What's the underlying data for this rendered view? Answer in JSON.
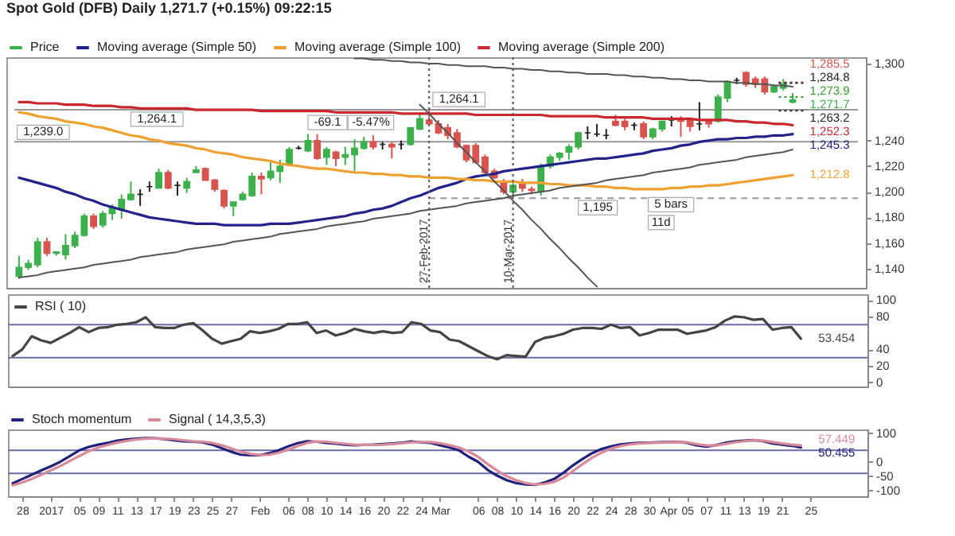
{
  "chart_data": [
    {
      "type": "candlestick",
      "title": "Spot Gold (DFB)   Daily   1,271.7 (+0.15%)   09:22:15",
      "categories": [
        null,
        null,
        null,
        null,
        null,
        null,
        null,
        null,
        null,
        null,
        null,
        null,
        null,
        null,
        null,
        null,
        null,
        null,
        null,
        null,
        null,
        null,
        null,
        null,
        null,
        null,
        null,
        null,
        null,
        null,
        null,
        null,
        null,
        null,
        null,
        null,
        null,
        null,
        null,
        null,
        null,
        null,
        null,
        null,
        null,
        null,
        null,
        null,
        null,
        null,
        null,
        null,
        null,
        null,
        null,
        null,
        null,
        null,
        null,
        null,
        null,
        null,
        null,
        null,
        null,
        null,
        null,
        null,
        null,
        null,
        null,
        null,
        null,
        null,
        null,
        null,
        null,
        null,
        null,
        null,
        null,
        null,
        null,
        null
      ],
      "series": [
        {
          "name": "Price",
          "color": "#3cb04a",
          "ohlc": [
            [
              1134,
              1150,
              1132,
              1141
            ],
            [
              1141,
              1147,
              1139,
              1144
            ],
            [
              1143,
              1164,
              1141,
              1161
            ],
            [
              1161,
              1164,
              1150,
              1152
            ],
            [
              1152,
              1153,
              1150,
              1153
            ],
            [
              1151,
              1167,
              1147,
              1158
            ],
            [
              1158,
              1169,
              1156,
              1166
            ],
            [
              1166,
              1183,
              1165,
              1181
            ],
            [
              1181,
              1183,
              1171,
              1173
            ],
            [
              1174,
              1185,
              1172,
              1183
            ],
            [
              1183,
              1190,
              1178,
              1188
            ],
            [
              1186,
              1198,
              1179,
              1194
            ],
            [
              1194,
              1208,
              1193,
              1198
            ],
            [
              1198,
              1202,
              1189,
              1198
            ],
            [
              1204,
              1208,
              1200,
              1204
            ],
            [
              1203,
              1218,
              1203,
              1215
            ],
            [
              1215,
              1217,
              1202,
              1203
            ],
            [
              1205,
              1208,
              1197,
              1205
            ],
            [
              1203,
              1211,
              1199,
              1208
            ],
            [
              1215,
              1220,
              1215,
              1217
            ],
            [
              1218,
              1219,
              1209,
              1209
            ],
            [
              1209,
              1210,
              1200,
              1202
            ],
            [
              1201,
              1202,
              1187,
              1189
            ],
            [
              1189,
              1192,
              1181,
              1192
            ],
            [
              1194,
              1200,
              1193,
              1198
            ],
            [
              1197,
              1215,
              1196,
              1212
            ],
            [
              1212,
              1215,
              1198,
              1210
            ],
            [
              1211,
              1225,
              1209,
              1216
            ],
            [
              1216,
              1225,
              1207,
              1220
            ],
            [
              1221,
              1235,
              1220,
              1233
            ],
            [
              1234,
              1236,
              1233,
              1234
            ],
            [
              1232,
              1245,
              1231,
              1240
            ],
            [
              1240,
              1245,
              1225,
              1226
            ],
            [
              1227,
              1235,
              1221,
              1233
            ],
            [
              1231,
              1232,
              1220,
              1226
            ],
            [
              1227,
              1235,
              1221,
              1229
            ],
            [
              1229,
              1241,
              1216,
              1234
            ],
            [
              1234,
              1243,
              1233,
              1239
            ],
            [
              1239,
              1244,
              1233,
              1235
            ],
            [
              1237,
              1239,
              1233,
              1237
            ],
            [
              1237,
              1239,
              1226,
              1235
            ],
            [
              1237,
              1240,
              1233,
              1237
            ],
            [
              1237,
              1250,
              1236,
              1250
            ],
            [
              1249,
              1262,
              1248,
              1257
            ],
            [
              1256,
              1264.1,
              1252,
              1253
            ],
            [
              1253,
              1256,
              1245,
              1246
            ],
            [
              1250,
              1253,
              1241,
              1244
            ],
            [
              1246,
              1249,
              1234,
              1235
            ],
            [
              1236,
              1237,
              1223,
              1225
            ],
            [
              1236,
              1238,
              1222,
              1223
            ],
            [
              1227,
              1229,
              1213,
              1215
            ],
            [
              1216,
              1218,
              1210,
              1211
            ],
            [
              1208,
              1210,
              1198,
              1200
            ],
            [
              1200,
              1208,
              1196,
              1205
            ],
            [
              1207,
              1210,
              1200,
              1203
            ],
            [
              1202,
              1204,
              1198,
              1201
            ],
            [
              1200,
              1222,
              1197,
              1220
            ],
            [
              1220,
              1229,
              1218,
              1227
            ],
            [
              1227,
              1231,
              1224,
              1230
            ],
            [
              1231,
              1237,
              1225,
              1235
            ],
            [
              1235,
              1247,
              1233,
              1246
            ],
            [
              1246,
              1251,
              1241,
              1246
            ],
            [
              1245,
              1253,
              1243,
              1245
            ],
            [
              1244,
              1249,
              1241,
              1244
            ],
            [
              1255,
              1260,
              1251,
              1252
            ],
            [
              1255,
              1257,
              1248,
              1251
            ],
            [
              1252,
              1254,
              1248,
              1252
            ],
            [
              1253,
              1255,
              1241,
              1243
            ],
            [
              1243,
              1250,
              1241,
              1249
            ],
            [
              1249,
              1255,
              1247,
              1255
            ],
            [
              1256,
              1259,
              1251,
              1256
            ],
            [
              1256,
              1259,
              1243,
              1255
            ],
            [
              1256,
              1258,
              1247,
              1251
            ],
            [
              1253,
              1270,
              1248,
              1253
            ],
            [
              1255,
              1257,
              1250,
              1253
            ],
            [
              1255,
              1276,
              1254,
              1274
            ],
            [
              1273,
              1287,
              1270,
              1286
            ],
            [
              1287,
              1289,
              1284,
              1287
            ],
            [
              1293,
              1294,
              1282,
              1284
            ],
            [
              1288,
              1290,
              1281,
              1284
            ],
            [
              1288,
              1290,
              1276,
              1278
            ],
            [
              1278,
              1284,
              1277,
              1282
            ],
            [
              1281,
              1288,
              1279,
              1284
            ],
            [
              1270,
              1277,
              1269,
              1271.7
            ]
          ],
          "colors": [
            "#3cb04a",
            "#3cb04a",
            "#3cb04a",
            "#d9534f",
            "#3cb04a",
            "#3cb04a",
            "#3cb04a",
            "#3cb04a",
            "#d9534f",
            "#3cb04a",
            "#3cb04a",
            "#3cb04a",
            "#3cb04a",
            "#222222",
            "#222222",
            "#3cb04a",
            "#d9534f",
            "#222222",
            "#3cb04a",
            "#3cb04a",
            "#d9534f",
            "#d9534f",
            "#d9534f",
            "#3cb04a",
            "#3cb04a",
            "#3cb04a",
            "#d9534f",
            "#3cb04a",
            "#3cb04a",
            "#3cb04a",
            "#222222",
            "#3cb04a",
            "#d9534f",
            "#3cb04a",
            "#d9534f",
            "#3cb04a",
            "#3cb04a",
            "#3cb04a",
            "#d9534f",
            "#222222",
            "#d9534f",
            "#222222",
            "#3cb04a",
            "#3cb04a",
            "#d9534f",
            "#d9534f",
            "#d9534f",
            "#d9534f",
            "#d9534f",
            "#d9534f",
            "#d9534f",
            "#d9534f",
            "#d9534f",
            "#3cb04a",
            "#d9534f",
            "#d9534f",
            "#3cb04a",
            "#3cb04a",
            "#3cb04a",
            "#3cb04a",
            "#3cb04a",
            "#222222",
            "#222222",
            "#222222",
            "#d9534f",
            "#d9534f",
            "#222222",
            "#d9534f",
            "#3cb04a",
            "#3cb04a",
            "#222222",
            "#d9534f",
            "#d9534f",
            "#222222",
            "#d9534f",
            "#3cb04a",
            "#3cb04a",
            "#222222",
            "#d9534f",
            "#d9534f",
            "#d9534f",
            "#3cb04a",
            "#3cb04a",
            "#3cb04a"
          ]
        },
        {
          "name": "Moving average (Simple 50)",
          "type": "line",
          "color": "#22228a",
          "values": [
            1211,
            1209,
            1207,
            1205,
            1203,
            1200,
            1198,
            1195,
            1193,
            1190,
            1188,
            1186,
            1184,
            1182,
            1180,
            1179,
            1178,
            1177,
            1176,
            1175,
            1175,
            1175,
            1174,
            1174,
            1174,
            1174,
            1174,
            1175,
            1175,
            1175,
            1176,
            1177,
            1178,
            1179,
            1180,
            1181,
            1183,
            1184,
            1186,
            1187,
            1189,
            1192,
            1195,
            1197,
            1200,
            1203,
            1205,
            1207,
            1210,
            1212,
            1213,
            1214,
            1216,
            1217,
            1218,
            1219,
            1220,
            1221,
            1222,
            1223,
            1224,
            1225,
            1226,
            1226,
            1227,
            1228,
            1229,
            1230,
            1232,
            1233,
            1234,
            1236,
            1237,
            1239,
            1240,
            1241,
            1241,
            1242,
            1242,
            1243,
            1243,
            1244,
            1244,
            1245
          ]
        },
        {
          "name": "Moving average (Simple 100)",
          "type": "line",
          "color": "#f0a030",
          "values": [
            1262,
            1261,
            1259,
            1258,
            1257,
            1255,
            1254,
            1253,
            1251,
            1250,
            1248,
            1246,
            1244,
            1243,
            1241,
            1240,
            1238,
            1237,
            1236,
            1234,
            1233,
            1231,
            1230,
            1229,
            1227,
            1226,
            1225,
            1224,
            1222,
            1221,
            1220,
            1219,
            1218,
            1218,
            1217,
            1216,
            1215,
            1215,
            1214,
            1214,
            1213,
            1213,
            1212,
            1212,
            1211,
            1211,
            1211,
            1210,
            1210,
            1209,
            1209,
            1208,
            1208,
            1208,
            1207,
            1207,
            1207,
            1206,
            1206,
            1205,
            1205,
            1205,
            1204,
            1204,
            1203,
            1203,
            1202,
            1202,
            1202,
            1202,
            1203,
            1203,
            1204,
            1204,
            1205,
            1205,
            1206,
            1207,
            1208,
            1209,
            1210,
            1211,
            1212,
            1213
          ]
        },
        {
          "name": "Moving average (Simple 200)",
          "type": "line",
          "color": "#c8282d",
          "values": [
            1270,
            1270,
            1269,
            1269,
            1269,
            1268,
            1268,
            1268,
            1267,
            1267,
            1267,
            1266,
            1266,
            1265,
            1265,
            1265,
            1265,
            1265,
            1265,
            1264,
            1264,
            1264,
            1264,
            1264,
            1264,
            1264,
            1263,
            1263,
            1263,
            1263,
            1263,
            1263,
            1263,
            1263,
            1262,
            1262,
            1262,
            1262,
            1262,
            1262,
            1262,
            1261,
            1261,
            1261,
            1261,
            1261,
            1261,
            1261,
            1261,
            1260,
            1260,
            1260,
            1260,
            1260,
            1260,
            1260,
            1260,
            1259,
            1259,
            1259,
            1259,
            1259,
            1259,
            1258,
            1258,
            1258,
            1258,
            1258,
            1257,
            1257,
            1257,
            1257,
            1257,
            1256,
            1256,
            1256,
            1256,
            1255,
            1255,
            1254,
            1254,
            1253,
            1253,
            1252
          ]
        },
        {
          "type": "line",
          "color": "#555555",
          "values": [
            1133,
            1134,
            1135,
            1137,
            1138,
            1139,
            1140,
            1141,
            1143,
            1144,
            1145,
            1146,
            1147,
            1149,
            1150,
            1151,
            1152,
            1153,
            1155,
            1156,
            1157,
            1158,
            1159,
            1161,
            1162,
            1163,
            1164,
            1165,
            1167,
            1168,
            1169,
            1170,
            1171,
            1173,
            1174,
            1175,
            1176,
            1177,
            1179,
            1180,
            1181,
            1182,
            1183,
            1185,
            1186,
            1187,
            1188,
            1189,
            1191,
            1192,
            1193,
            1194,
            1195,
            1197,
            1198,
            1199,
            1200,
            1201,
            1203,
            1204,
            1205,
            1206,
            1207,
            1209,
            1210,
            1211,
            1212,
            1213,
            1215,
            1216,
            1217,
            1218,
            1219,
            1221,
            1222,
            1223,
            1224,
            1225,
            1227,
            1228,
            1229,
            1230,
            1231,
            1233
          ]
        },
        {
          "type": "line",
          "color": "#555555",
          "values": [
            null,
            null,
            null,
            null,
            null,
            null,
            null,
            null,
            null,
            null,
            null,
            null,
            null,
            null,
            null,
            null,
            null,
            null,
            null,
            null,
            null,
            null,
            null,
            null,
            null,
            null,
            null,
            null,
            null,
            null,
            null,
            null,
            null,
            null,
            null,
            null,
            1304,
            1304,
            1303,
            1303,
            1302,
            1302,
            1301,
            1301,
            1300,
            1300,
            1299,
            1299,
            1298,
            1298,
            1298,
            1297,
            1297,
            1296,
            1296,
            1295,
            1295,
            1294,
            1294,
            1293,
            1293,
            1292,
            1292,
            1292,
            1291,
            1291,
            1290,
            1290,
            1289,
            1289,
            1288,
            1288,
            1287,
            1287,
            1286,
            1286,
            1286,
            1285,
            1285,
            1284,
            1284,
            1283,
            1283,
            1282
          ]
        },
        {
          "type": "line",
          "color": "#555555",
          "values": [
            null,
            null,
            null,
            null,
            null,
            null,
            null,
            null,
            null,
            null,
            null,
            null,
            null,
            null,
            null,
            null,
            null,
            null,
            null,
            null,
            null,
            null,
            null,
            null,
            null,
            null,
            null,
            null,
            null,
            null,
            null,
            null,
            null,
            null,
            null,
            null,
            null,
            null,
            null,
            null,
            null,
            null,
            null,
            1268,
            1261,
            1253,
            1246,
            1238,
            1231,
            1223,
            1216,
            1208,
            1201,
            1193,
            1186,
            1178,
            1171,
            1163,
            1156,
            1148,
            1141,
            1133,
            1126,
            null,
            null,
            null,
            null,
            null,
            null,
            null,
            null,
            null,
            null,
            null,
            null,
            null,
            null,
            null,
            null,
            null,
            null,
            null,
            null,
            null
          ]
        }
      ],
      "ylim": [
        1125,
        1305
      ],
      "yticks": [
        {
          "value": 1140,
          "label": "1,140"
        },
        {
          "value": 1160,
          "label": "1,160"
        },
        {
          "value": 1180,
          "label": "1,180"
        },
        {
          "value": 1200,
          "label": "1,200"
        },
        {
          "value": 1220,
          "label": "1,220"
        },
        {
          "value": 1240,
          "label": "1,240"
        },
        {
          "value": 1300,
          "label": "1,300"
        }
      ],
      "ref_lines": [
        {
          "axis": "y",
          "value": 1264.1,
          "label": "1,264.1",
          "line_style": "solid",
          "color": "#999999"
        },
        {
          "axis": "y",
          "value": 1239.0,
          "label": "1,239.0",
          "line_style": "solid",
          "color": "#999999"
        },
        {
          "axis": "y",
          "value": 1195,
          "label": "1,195",
          "line_style": "dashed",
          "color": "#999999"
        },
        {
          "axis": "y",
          "value": 1285.5,
          "label": "1,285.5",
          "line_style": "dotted",
          "color": "#d9534f"
        },
        {
          "axis": "y",
          "value": 1284.8,
          "label": "1,284.8",
          "line_style": "dotted",
          "color": "#222222"
        },
        {
          "axis": "y",
          "value": 1273.9,
          "label": "1,273.9",
          "line_style": "dotted",
          "color": "#33a02c"
        },
        {
          "axis": "y",
          "value": 1263.2,
          "label": "1,263.2",
          "line_style": "dotted",
          "color": "#222222"
        }
      ],
      "annotations": [
        "1,271.7",
        "1,252.3",
        "1,245.3",
        "1,212.8",
        "1,264.1",
        "-69.1",
        "-5.47%",
        "5 bars",
        "11d",
        "27-Feb-2017",
        "10-Mar-2017"
      ],
      "legend": "top",
      "tick_labels": "y"
    },
    {
      "type": "line",
      "categories": [
        null,
        null,
        null,
        null,
        null,
        null,
        null,
        null,
        null,
        null,
        null,
        null,
        null,
        null,
        null,
        null,
        null,
        null,
        null,
        null,
        null,
        null,
        null,
        null,
        null,
        null,
        null,
        null,
        null,
        null,
        null,
        null,
        null,
        null,
        null,
        null,
        null,
        null,
        null,
        null,
        null,
        null,
        null,
        null,
        null,
        null,
        null,
        null,
        null,
        null,
        null,
        null,
        null,
        null,
        null,
        null,
        null,
        null,
        null,
        null,
        null,
        null,
        null,
        null,
        null,
        null,
        null,
        null,
        null,
        null,
        null,
        null,
        null,
        null,
        null,
        null,
        null,
        null,
        null,
        null,
        null,
        null,
        null,
        null
      ],
      "series": [
        {
          "name": "RSI ( 10)",
          "color": "#444444",
          "values": [
            32,
            40,
            56,
            51,
            48,
            54,
            60,
            67,
            61,
            66,
            67,
            70,
            71,
            73,
            79,
            67,
            66,
            66,
            70,
            72,
            63,
            53,
            47,
            50,
            53,
            62,
            60,
            62,
            65,
            71,
            71,
            73,
            60,
            63,
            57,
            60,
            65,
            62,
            60,
            62,
            60,
            61,
            73,
            71,
            63,
            61,
            52,
            50,
            44,
            38,
            32,
            28,
            33,
            32,
            31,
            49,
            54,
            56,
            59,
            64,
            66,
            66,
            65,
            70,
            66,
            67,
            57,
            60,
            64,
            64,
            64,
            59,
            61,
            63,
            67,
            75,
            80,
            79,
            76,
            77,
            64,
            66,
            67,
            53
          ]
        }
      ],
      "ylim": [
        -5,
        107
      ],
      "yticks": [
        0,
        20,
        40,
        80,
        100
      ],
      "ref_lines": [
        {
          "axis": "y",
          "value": 70,
          "line_style": "solid",
          "color": "#6b6baa"
        },
        {
          "axis": "y",
          "value": 30,
          "line_style": "solid",
          "color": "#6b6baa"
        }
      ],
      "annotations": [
        "53.454"
      ],
      "legend": "top left",
      "tick_labels": "y"
    },
    {
      "type": "line",
      "categories": [
        null,
        "28",
        null,
        null,
        "2017",
        null,
        null,
        "05",
        null,
        "09",
        null,
        "11",
        null,
        "13",
        null,
        "17",
        null,
        "19",
        null,
        "23",
        null,
        "25",
        null,
        "27",
        null,
        null,
        "Feb",
        null,
        null,
        "06",
        null,
        "08",
        null,
        "10",
        null,
        "14",
        null,
        "16",
        null,
        "20",
        null,
        "22",
        null,
        "24",
        null,
        "Mar",
        null,
        null,
        null,
        "06",
        null,
        "08",
        null,
        "10",
        null,
        "14",
        null,
        "16",
        null,
        "20",
        null,
        "22",
        null,
        "24",
        null,
        "28",
        null,
        "30",
        null,
        "Apr",
        null,
        "05",
        null,
        "07",
        null,
        "11",
        null,
        "13",
        null,
        "19",
        null,
        "21",
        null,
        null,
        "25"
      ],
      "series": [
        {
          "name": "Stoch momentum",
          "color": "#22227a",
          "values": [
            -75,
            -60,
            -45,
            -30,
            -16,
            0,
            20,
            40,
            52,
            60,
            66,
            74,
            78,
            81,
            83,
            82,
            79,
            75,
            72,
            70,
            68,
            60,
            48,
            35,
            25,
            23,
            23,
            30,
            40,
            54,
            65,
            72,
            70,
            66,
            63,
            60,
            58,
            59,
            60,
            62,
            64,
            67,
            71,
            68,
            66,
            58,
            50,
            40,
            18,
            0,
            -28,
            -48,
            -64,
            -74,
            -79,
            -80,
            -72,
            -60,
            -38,
            -12,
            10,
            30,
            45,
            54,
            61,
            64,
            66,
            67,
            68,
            69,
            70,
            66,
            58,
            53,
            58,
            66,
            71,
            74,
            76,
            72,
            64,
            60,
            56,
            50,
            null
          ]
        },
        {
          "name": "Signal ( 14,3,5,3)",
          "color": "#d98a9a",
          "values": [
            -82,
            -72,
            -60,
            -45,
            -30,
            -15,
            3,
            20,
            37,
            50,
            59,
            67,
            73,
            78,
            81,
            82,
            81,
            79,
            75,
            72,
            70,
            66,
            58,
            47,
            36,
            28,
            24,
            25,
            32,
            42,
            55,
            66,
            71,
            70,
            66,
            63,
            60,
            59,
            59,
            60,
            62,
            65,
            68,
            69,
            69,
            65,
            58,
            50,
            36,
            18,
            -8,
            -30,
            -50,
            -64,
            -74,
            -79,
            -77,
            -70,
            -55,
            -32,
            -8,
            14,
            32,
            46,
            55,
            61,
            64,
            66,
            67,
            68,
            69,
            68,
            62,
            57,
            57,
            62,
            68,
            72,
            75,
            74,
            69,
            64,
            60,
            57,
            null
          ]
        }
      ],
      "ylim": [
        -120,
        113
      ],
      "yticks": [
        -100,
        -50,
        0,
        100
      ],
      "ref_lines": [
        {
          "axis": "y",
          "value": 40,
          "line_style": "solid",
          "color": "#6b6baa"
        },
        {
          "axis": "y",
          "value": -40,
          "line_style": "solid",
          "color": "#6b6baa"
        }
      ],
      "annotations": [
        "57.449",
        "50.455"
      ],
      "legend": "top left"
    }
  ]
}
